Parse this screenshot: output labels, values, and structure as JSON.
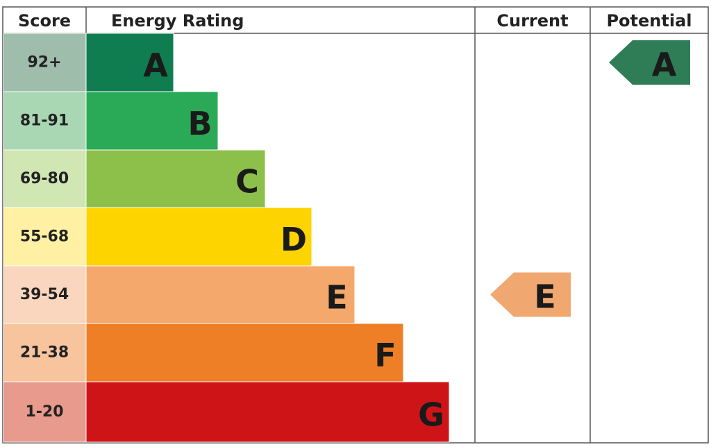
{
  "header": {
    "score": "Score",
    "rating": "Energy Rating",
    "current": "Current",
    "potential": "Potential"
  },
  "bands": [
    {
      "score": "92+",
      "letter": "A",
      "color": "#0f7d50",
      "score_color": "#9fbdab"
    },
    {
      "score": "81-91",
      "letter": "B",
      "color": "#2aa956",
      "score_color": "#a9d7b3"
    },
    {
      "score": "69-80",
      "letter": "C",
      "color": "#8cc04b",
      "score_color": "#d0e6b3"
    },
    {
      "score": "55-68",
      "letter": "D",
      "color": "#fdd300",
      "score_color": "#fff0a3"
    },
    {
      "score": "39-54",
      "letter": "E",
      "color": "#f5a86b",
      "score_color": "#f9d6bd"
    },
    {
      "score": "21-38",
      "letter": "F",
      "color": "#ee7f26",
      "score_color": "#f8c49e"
    },
    {
      "score": "1-20",
      "letter": "G",
      "color": "#cf1418",
      "score_color": "#e89a8d"
    }
  ],
  "current": {
    "letter": "E",
    "color": "#f0a870"
  },
  "potential": {
    "letter": "A",
    "color": "#2e7d57"
  }
}
